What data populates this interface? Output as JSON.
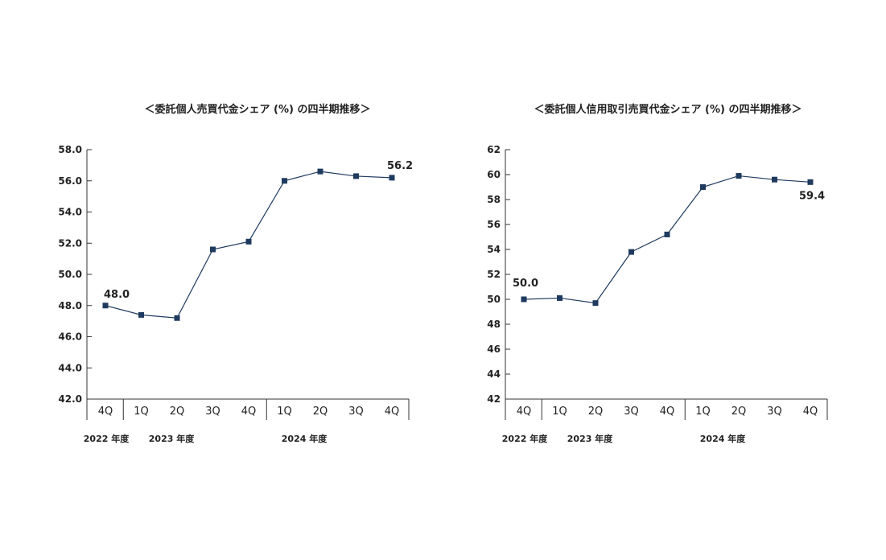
{
  "chart_data": [
    {
      "type": "line",
      "title": "＜委託個人売買代金シェア (%) の四半期推移＞",
      "categories": [
        "4Q",
        "1Q",
        "2Q",
        "3Q",
        "4Q",
        "1Q",
        "2Q",
        "3Q",
        "4Q"
      ],
      "year_groups": [
        {
          "label": "2022 年度",
          "count": 1
        },
        {
          "label": "2023 年度",
          "count": 4
        },
        {
          "label": "2024 年度",
          "count": 4
        }
      ],
      "values": [
        48.0,
        47.4,
        47.2,
        51.6,
        52.1,
        56.0,
        56.6,
        56.3,
        56.2
      ],
      "ylim": [
        42.0,
        58.0
      ],
      "yticks": [
        "42.0",
        "44.0",
        "46.0",
        "48.0",
        "50.0",
        "52.0",
        "54.0",
        "56.0",
        "58.0"
      ],
      "data_labels": [
        {
          "index": 0,
          "text": "48.0"
        },
        {
          "index": 8,
          "text": "56.2"
        }
      ],
      "grid": false,
      "color": "#1f3a5f"
    },
    {
      "type": "line",
      "title": "＜委託個人信用取引売買代金シェア (%) の四半期推移＞",
      "categories": [
        "4Q",
        "1Q",
        "2Q",
        "3Q",
        "4Q",
        "1Q",
        "2Q",
        "3Q",
        "4Q"
      ],
      "year_groups": [
        {
          "label": "2022 年度",
          "count": 1
        },
        {
          "label": "2023 年度",
          "count": 4
        },
        {
          "label": "2024 年度",
          "count": 4
        }
      ],
      "values": [
        50.0,
        50.1,
        49.7,
        53.8,
        55.2,
        59.0,
        59.9,
        59.6,
        59.4
      ],
      "ylim": [
        42,
        62
      ],
      "yticks": [
        "42",
        "44",
        "46",
        "48",
        "50",
        "52",
        "54",
        "56",
        "58",
        "60",
        "62"
      ],
      "data_labels": [
        {
          "index": 0,
          "text": "50.0"
        },
        {
          "index": 8,
          "text": "59.4"
        }
      ],
      "grid": false,
      "color": "#1f3a5f"
    }
  ]
}
